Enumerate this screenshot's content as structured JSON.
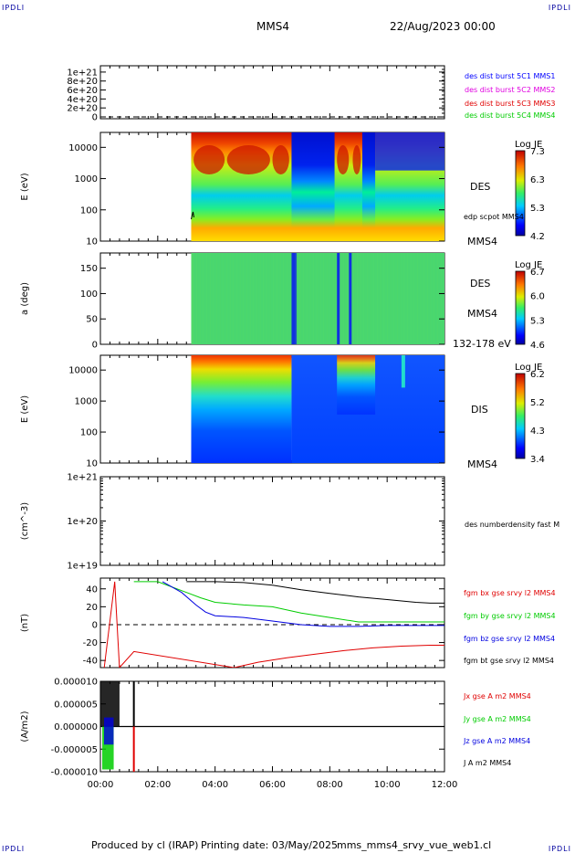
{
  "header": {
    "corner_text": "IPDLI",
    "spacecraft": "MMS4",
    "datetime": "22/Aug/2023 00:00"
  },
  "footer": {
    "produced_by": "Produced by cl (IRAP)",
    "printing_date": "Printing date: 03/May/2025",
    "script_name": "mms_mms4_srvy_vue_web1.cl"
  },
  "colors": {
    "c1": "#0000ff",
    "c2": "#e000e0",
    "c3": "#e00000",
    "c4": "#00cc00",
    "bx": "#e00000",
    "by": "#00cc00",
    "bz": "#0000e0",
    "bt": "#000000"
  },
  "chart_data": [
    {
      "type": "line",
      "panel": "des-dist-burst",
      "ylabel": "",
      "ylim": [
        0,
        1.1e+21
      ],
      "y_ticks": [
        "1e+21",
        "8e+20",
        "6e+20",
        "4e+20",
        "2e+20",
        "0"
      ],
      "y_tick_values": [
        1e+21,
        8e+20,
        6e+20,
        4e+20,
        2e+20,
        0
      ],
      "dashed_reference": 0,
      "series": [
        {
          "name": "des dist burst 5C1 MMS1",
          "color": "#0000ff",
          "x": [],
          "y": []
        },
        {
          "name": "des dist burst 5C2 MMS2",
          "color": "#e000e0",
          "x": [],
          "y": []
        },
        {
          "name": "des dist burst 5C3 MMS3",
          "color": "#e00000",
          "x": [],
          "y": []
        },
        {
          "name": "des dist burst 5C4 MMS4",
          "color": "#00cc00",
          "x": [],
          "y": []
        }
      ]
    },
    {
      "type": "heatmap",
      "panel": "des-energy",
      "ylabel": "E (eV)",
      "yscale": "log",
      "ylim": [
        10,
        30000
      ],
      "y_ticks": [
        "10000",
        "1000",
        "100",
        "10"
      ],
      "y_tick_values": [
        10000,
        1000,
        100,
        10
      ],
      "data_start": "03:10",
      "right_labels": [
        "DES",
        "edp scpot MMS4",
        "MMS4"
      ],
      "colorbar": {
        "title": "Log JE",
        "range": [
          4.2,
          7.3
        ],
        "ticks": [
          "7.3",
          "6.3",
          "5.3",
          "4.2"
        ]
      },
      "peak_flux_x": [
        "03:15-06:40",
        "08:05-09:35"
      ]
    },
    {
      "type": "heatmap",
      "panel": "des-pitch-angle",
      "ylabel": "a (deg)",
      "ylim": [
        0,
        180
      ],
      "y_ticks": [
        "150",
        "100",
        "50",
        "0"
      ],
      "y_tick_values": [
        150,
        100,
        50,
        0
      ],
      "data_start": "03:10",
      "right_labels": [
        "DES",
        "MMS4",
        "132-178 eV"
      ],
      "colorbar": {
        "title": "Log JE",
        "range": [
          4.6,
          6.7
        ],
        "ticks": [
          "6.7",
          "6.0",
          "5.3",
          "4.6"
        ]
      }
    },
    {
      "type": "heatmap",
      "panel": "dis-energy",
      "ylabel": "E (eV)",
      "yscale": "log",
      "ylim": [
        10,
        30000
      ],
      "y_ticks": [
        "10000",
        "1000",
        "100",
        "10"
      ],
      "y_tick_values": [
        10000,
        1000,
        100,
        10
      ],
      "data_start": "03:10",
      "right_labels": [
        "DIS",
        "MMS4"
      ],
      "colorbar": {
        "title": "Log JE",
        "range": [
          3.4,
          6.2
        ],
        "ticks": [
          "6.2",
          "5.2",
          "4.3",
          "3.4"
        ]
      }
    },
    {
      "type": "line",
      "panel": "des-numberdensity",
      "ylabel": "(cm^-3)",
      "yscale": "log",
      "ylim": [
        1e+19,
        1e+21
      ],
      "y_ticks": [
        "1e+21",
        "1e+20",
        "1e+19"
      ],
      "y_tick_values": [
        1e+21,
        1e+20,
        1e+19
      ],
      "series": [
        {
          "name": "des numberdensity fast M",
          "color": "#000000",
          "x": [],
          "y": []
        }
      ]
    },
    {
      "type": "line",
      "panel": "fgm",
      "ylabel": "(nT)",
      "ylim": [
        -48,
        52
      ],
      "y_ticks": [
        "40",
        "20",
        "0",
        "-20",
        "-40"
      ],
      "y_tick_values": [
        40,
        20,
        0,
        -20,
        -40
      ],
      "dashed_reference": 0,
      "series": [
        {
          "name": "fgm bx gse srvy l2 MMS4",
          "color": "#e00000",
          "x": [
            "00:08",
            "00:30",
            "00:40",
            "01:10",
            "04:40",
            "05:30",
            "06:30",
            "07:30",
            "08:30",
            "09:30",
            "10:30",
            "11:30",
            "12:00"
          ],
          "y": [
            -48,
            48,
            -48,
            -30,
            -48,
            -42,
            -37,
            -33,
            -29,
            -26,
            -24,
            -23,
            -23
          ]
        },
        {
          "name": "fgm by gse srvy l2 MMS4",
          "color": "#00cc00",
          "x": [
            "01:10",
            "02:00",
            "03:00",
            "03:30",
            "04:00",
            "05:00",
            "06:00",
            "07:00",
            "08:00",
            "09:00",
            "10:00",
            "11:00",
            "12:00"
          ],
          "y": [
            48,
            48,
            36,
            30,
            25,
            22,
            20,
            13,
            8,
            3,
            3,
            3,
            3
          ]
        },
        {
          "name": "fgm bz gse srvy l2 MMS4",
          "color": "#0000e0",
          "x": [
            "02:10",
            "02:50",
            "03:20",
            "03:40",
            "04:00",
            "05:00",
            "06:00",
            "07:00",
            "08:00",
            "09:00",
            "10:00",
            "11:00",
            "12:00"
          ],
          "y": [
            48,
            36,
            22,
            14,
            10,
            8,
            4,
            0,
            -2,
            -2,
            -1,
            -1,
            -1
          ]
        },
        {
          "name": "fgm bt gse srvy l2 MMS4",
          "color": "#000000",
          "x": [
            "03:00",
            "04:00",
            "05:00",
            "06:00",
            "07:00",
            "08:00",
            "09:00",
            "10:00",
            "11:00",
            "11:30",
            "12:00"
          ],
          "y": [
            48,
            48,
            47,
            44,
            39,
            35,
            31,
            28,
            25,
            24,
            24
          ]
        }
      ]
    },
    {
      "type": "line",
      "panel": "current-density",
      "ylabel": "(A/m2)",
      "ylim": [
        -1e-05,
        1e-05
      ],
      "y_ticks": [
        "0.000010",
        "0.000005",
        "0.000000",
        "-0.000005",
        "-0.000010"
      ],
      "y_tick_values": [
        1e-05,
        5e-06,
        0,
        -5e-06,
        -1e-05
      ],
      "xlim": [
        "00:00",
        "12:00"
      ],
      "x_ticks": [
        "00:00",
        "02:00",
        "04:00",
        "06:00",
        "08:00",
        "10:00",
        "12:00"
      ],
      "series": [
        {
          "name": "Jx gse A m2 MMS4",
          "color": "#e00000"
        },
        {
          "name": "Jy gse A m2 MMS4",
          "color": "#00cc00"
        },
        {
          "name": "Jz gse A m2 MMS4",
          "color": "#0000e0"
        },
        {
          "name": "J A m2 MMS4",
          "color": "#000000"
        }
      ]
    }
  ]
}
